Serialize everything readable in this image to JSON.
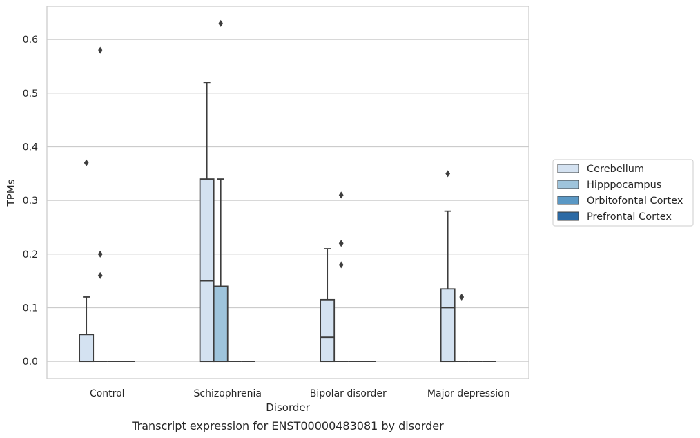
{
  "chart_data": {
    "type": "box",
    "title": "",
    "caption": "Transcript expression for ENST00000483081 by disorder",
    "xlabel": "Disorder",
    "ylabel": "TPMs",
    "ylim": [
      -0.032,
      0.662
    ],
    "yticks": [
      "0.0",
      "0.1",
      "0.2",
      "0.3",
      "0.4",
      "0.5",
      "0.6"
    ],
    "grid": "horizontal",
    "legend_position": "right",
    "categories": [
      "Control",
      "Schizophrenia",
      "Bipolar disorder",
      "Major depression"
    ],
    "series": [
      {
        "name": "Cerebellum",
        "color": "#d4e2f1",
        "boxes": [
          {
            "q1": 0.0,
            "median": 0.0,
            "q3": 0.05,
            "whisker_low": 0.0,
            "whisker_high": 0.12,
            "outliers": [
              0.37
            ]
          },
          {
            "q1": 0.0,
            "median": 0.15,
            "q3": 0.34,
            "whisker_low": 0.0,
            "whisker_high": 0.52,
            "outliers": []
          },
          {
            "q1": 0.0,
            "median": 0.045,
            "q3": 0.115,
            "whisker_low": 0.0,
            "whisker_high": 0.21,
            "outliers": []
          },
          {
            "q1": 0.0,
            "median": 0.1,
            "q3": 0.135,
            "whisker_low": 0.0,
            "whisker_high": 0.28,
            "outliers": [
              0.35
            ]
          }
        ]
      },
      {
        "name": "Hipppocampus",
        "color": "#9ec4dc",
        "boxes": [
          {
            "q1": 0.0,
            "median": 0.0,
            "q3": 0.0,
            "whisker_low": 0.0,
            "whisker_high": 0.0,
            "outliers": [
              0.58,
              0.2,
              0.16
            ]
          },
          {
            "q1": 0.0,
            "median": 0.0,
            "q3": 0.14,
            "whisker_low": 0.0,
            "whisker_high": 0.34,
            "outliers": [
              0.63
            ]
          },
          {
            "q1": 0.0,
            "median": 0.0,
            "q3": 0.0,
            "whisker_low": 0.0,
            "whisker_high": 0.0,
            "outliers": [
              0.31,
              0.22,
              0.18
            ]
          },
          {
            "q1": 0.0,
            "median": 0.0,
            "q3": 0.0,
            "whisker_low": 0.0,
            "whisker_high": 0.0,
            "outliers": [
              0.12
            ]
          }
        ]
      },
      {
        "name": "Orbitofontal Cortex",
        "color": "#5a98c5",
        "boxes": [
          {
            "q1": 0.0,
            "median": 0.0,
            "q3": 0.0,
            "whisker_low": 0.0,
            "whisker_high": 0.0,
            "outliers": []
          },
          {
            "q1": 0.0,
            "median": 0.0,
            "q3": 0.0,
            "whisker_low": 0.0,
            "whisker_high": 0.0,
            "outliers": []
          },
          {
            "q1": 0.0,
            "median": 0.0,
            "q3": 0.0,
            "whisker_low": 0.0,
            "whisker_high": 0.0,
            "outliers": []
          },
          {
            "q1": 0.0,
            "median": 0.0,
            "q3": 0.0,
            "whisker_low": 0.0,
            "whisker_high": 0.0,
            "outliers": []
          }
        ]
      },
      {
        "name": "Prefrontal Cortex",
        "color": "#2c6aa5",
        "boxes": [
          {
            "q1": 0.0,
            "median": 0.0,
            "q3": 0.0,
            "whisker_low": 0.0,
            "whisker_high": 0.0,
            "outliers": []
          },
          {
            "q1": 0.0,
            "median": 0.0,
            "q3": 0.0,
            "whisker_low": 0.0,
            "whisker_high": 0.0,
            "outliers": []
          },
          {
            "q1": 0.0,
            "median": 0.0,
            "q3": 0.0,
            "whisker_low": 0.0,
            "whisker_high": 0.0,
            "outliers": []
          },
          {
            "q1": 0.0,
            "median": 0.0,
            "q3": 0.0,
            "whisker_low": 0.0,
            "whisker_high": 0.0,
            "outliers": []
          }
        ]
      }
    ]
  }
}
